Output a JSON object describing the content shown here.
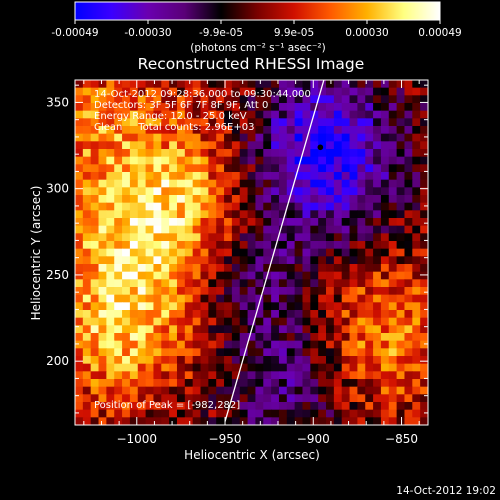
{
  "colorbar": {
    "ticks": [
      "-0.00049",
      "-0.00030",
      "-9.9e-05",
      "9.9e-05",
      "0.00030",
      "0.00049"
    ],
    "unit_label": "(photons cm⁻² s⁻¹ asec⁻²)",
    "colors": [
      "#0000ff",
      "#3a00ff",
      "#6a00b0",
      "#5a0078",
      "#000000",
      "#7a0000",
      "#d01000",
      "#ff5a00",
      "#ffb000",
      "#ffff80",
      "#ffffff"
    ]
  },
  "chart_data": {
    "type": "heatmap",
    "title": "Reconstructed RHESSI Image",
    "xlabel": "Heliocentric X (arcsec)",
    "ylabel": "Heliocentric Y (arcsec)",
    "xlim": [
      -1035,
      -835
    ],
    "ylim": [
      163,
      363
    ],
    "xticks": [
      -1000,
      -950,
      -900,
      -850
    ],
    "yticks": [
      200,
      250,
      300,
      350
    ],
    "xtick_labels": [
      "−1000",
      "−950",
      "−900",
      "−850"
    ],
    "ytick_labels": [
      "200",
      "250",
      "300",
      "350"
    ],
    "annotations": [
      "14-Oct-2012 09:28:36.000 to 09:30:44.000",
      "Detectors: 3F 5F 6F 7F 8F 9F, Att 0",
      "Energy Range: 12.0 - 25.0 keV",
      "Clean     Total counts: 2.96E+03"
    ],
    "peak_label": "Position of Peak = [-982,282]",
    "peak": [
      -982,
      282
    ],
    "limb_line": [
      [
        -950,
        165
      ],
      [
        -894,
        363
      ]
    ],
    "minimum_marker": [
      -896,
      324
    ]
  },
  "footer": {
    "timestamp": "14-Oct-2012 19:02"
  }
}
